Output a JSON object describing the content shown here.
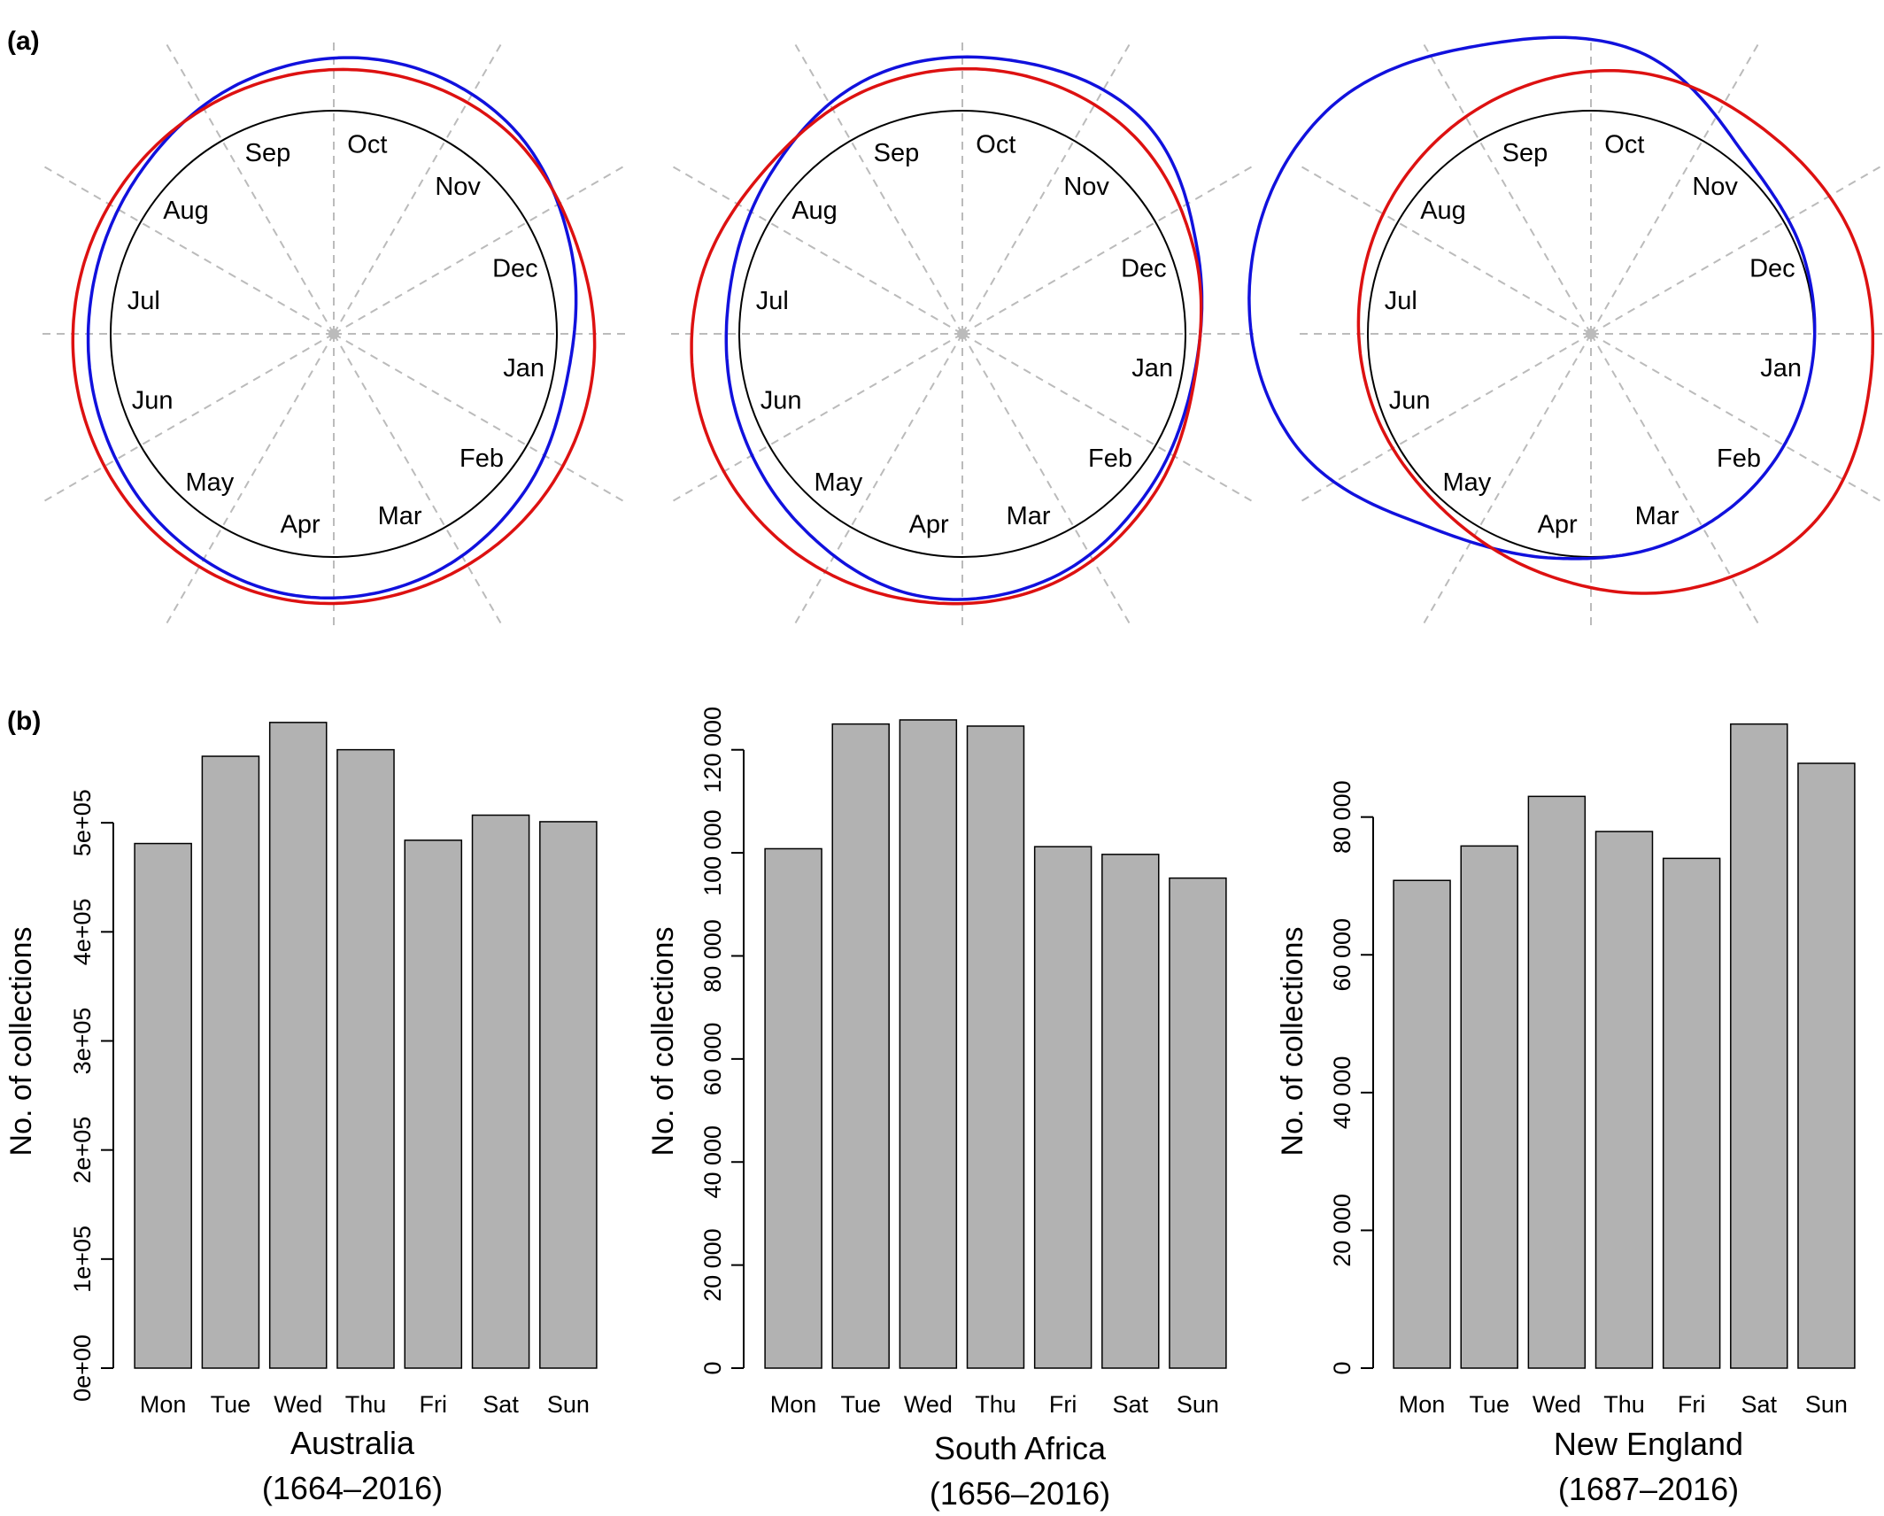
{
  "panel_labels": {
    "a": "(a)",
    "b": "(b)"
  },
  "month_order_clockwise_from_top": [
    "Oct",
    "Nov",
    "Dec",
    "Jan",
    "Feb",
    "Mar",
    "Apr",
    "May",
    "Jun",
    "Jul",
    "Aug",
    "Sep"
  ],
  "colors": {
    "blue_curve": "#1111dd",
    "red_curve": "#dd1111",
    "bar_fill": "#b2b2b2",
    "guide_lines": "#bbbbbb"
  },
  "chart_data": [
    {
      "type": "radial",
      "region": "Australia",
      "note": "seasonal circular density curves, relative radius per month",
      "series": [
        {
          "color": "blue",
          "values": [
            1.245,
            1.225,
            1.13,
            1.065,
            1.11,
            1.165,
            1.185,
            1.155,
            1.115,
            1.1,
            1.13,
            1.2
          ]
        },
        {
          "color": "red",
          "values": [
            1.19,
            1.195,
            1.16,
            1.175,
            1.19,
            1.2,
            1.21,
            1.2,
            1.18,
            1.165,
            1.16,
            1.17
          ]
        }
      ]
    },
    {
      "type": "radial",
      "region": "South Africa",
      "note": "seasonal circular density curves, relative radius per month",
      "series": [
        {
          "color": "blue",
          "values": [
            1.245,
            1.255,
            1.12,
            1.055,
            1.09,
            1.165,
            1.19,
            1.125,
            1.075,
            1.06,
            1.12,
            1.22
          ]
        },
        {
          "color": "red",
          "values": [
            1.19,
            1.175,
            1.105,
            1.06,
            1.12,
            1.19,
            1.215,
            1.235,
            1.23,
            1.2,
            1.15,
            1.175
          ]
        }
      ]
    },
    {
      "type": "radial",
      "region": "New England",
      "note": "seasonal circular density curves, relative radius per month",
      "series": [
        {
          "color": "blue",
          "values": [
            1.28,
            1.06,
            1.015,
            1.0,
            1.0,
            1.0,
            1.02,
            1.13,
            1.42,
            1.55,
            1.55,
            1.38
          ]
        },
        {
          "color": "red",
          "values": [
            1.19,
            1.2,
            1.25,
            1.27,
            1.31,
            1.22,
            1.1,
            1.03,
            1.03,
            1.05,
            1.09,
            1.14
          ]
        }
      ]
    },
    {
      "type": "bar",
      "categories": [
        "Mon",
        "Tue",
        "Wed",
        "Thu",
        "Fri",
        "Sat",
        "Sun"
      ],
      "values": [
        481000,
        561000,
        592000,
        567000,
        484000,
        507000,
        501000
      ],
      "ylabel": "No. of collections",
      "ylim": [
        0,
        600000
      ],
      "yticks": [
        0,
        100000,
        200000,
        300000,
        400000,
        500000
      ],
      "ytick_labels": [
        "0e+00",
        "1e+05",
        "2e+05",
        "3e+05",
        "4e+05",
        "5e+05"
      ],
      "region": "Australia",
      "period": "(1664–2016)"
    },
    {
      "type": "bar",
      "categories": [
        "Mon",
        "Tue",
        "Wed",
        "Thu",
        "Fri",
        "Sat",
        "Sun"
      ],
      "values": [
        100800,
        125000,
        125800,
        124600,
        101200,
        99700,
        95100
      ],
      "ylabel": "No. of collections",
      "ylim": [
        0,
        127000
      ],
      "yticks": [
        0,
        20000,
        40000,
        60000,
        80000,
        100000,
        120000
      ],
      "ytick_labels": [
        "0",
        "20 000",
        "40 000",
        "60 000",
        "80 000",
        "100 000",
        "120 000"
      ],
      "region": "South Africa",
      "period": "(1656–2016)"
    },
    {
      "type": "bar",
      "categories": [
        "Mon",
        "Tue",
        "Wed",
        "Thu",
        "Fri",
        "Sat",
        "Sun"
      ],
      "values": [
        70800,
        75800,
        83000,
        77900,
        74000,
        93500,
        87800
      ],
      "ylabel": "No. of collections",
      "ylim": [
        0,
        95000
      ],
      "yticks": [
        0,
        20000,
        40000,
        60000,
        80000
      ],
      "ytick_labels": [
        "0",
        "20 000",
        "40 000",
        "60 000",
        "80 000"
      ],
      "region": "New England",
      "period": "(1687–2016)"
    }
  ]
}
